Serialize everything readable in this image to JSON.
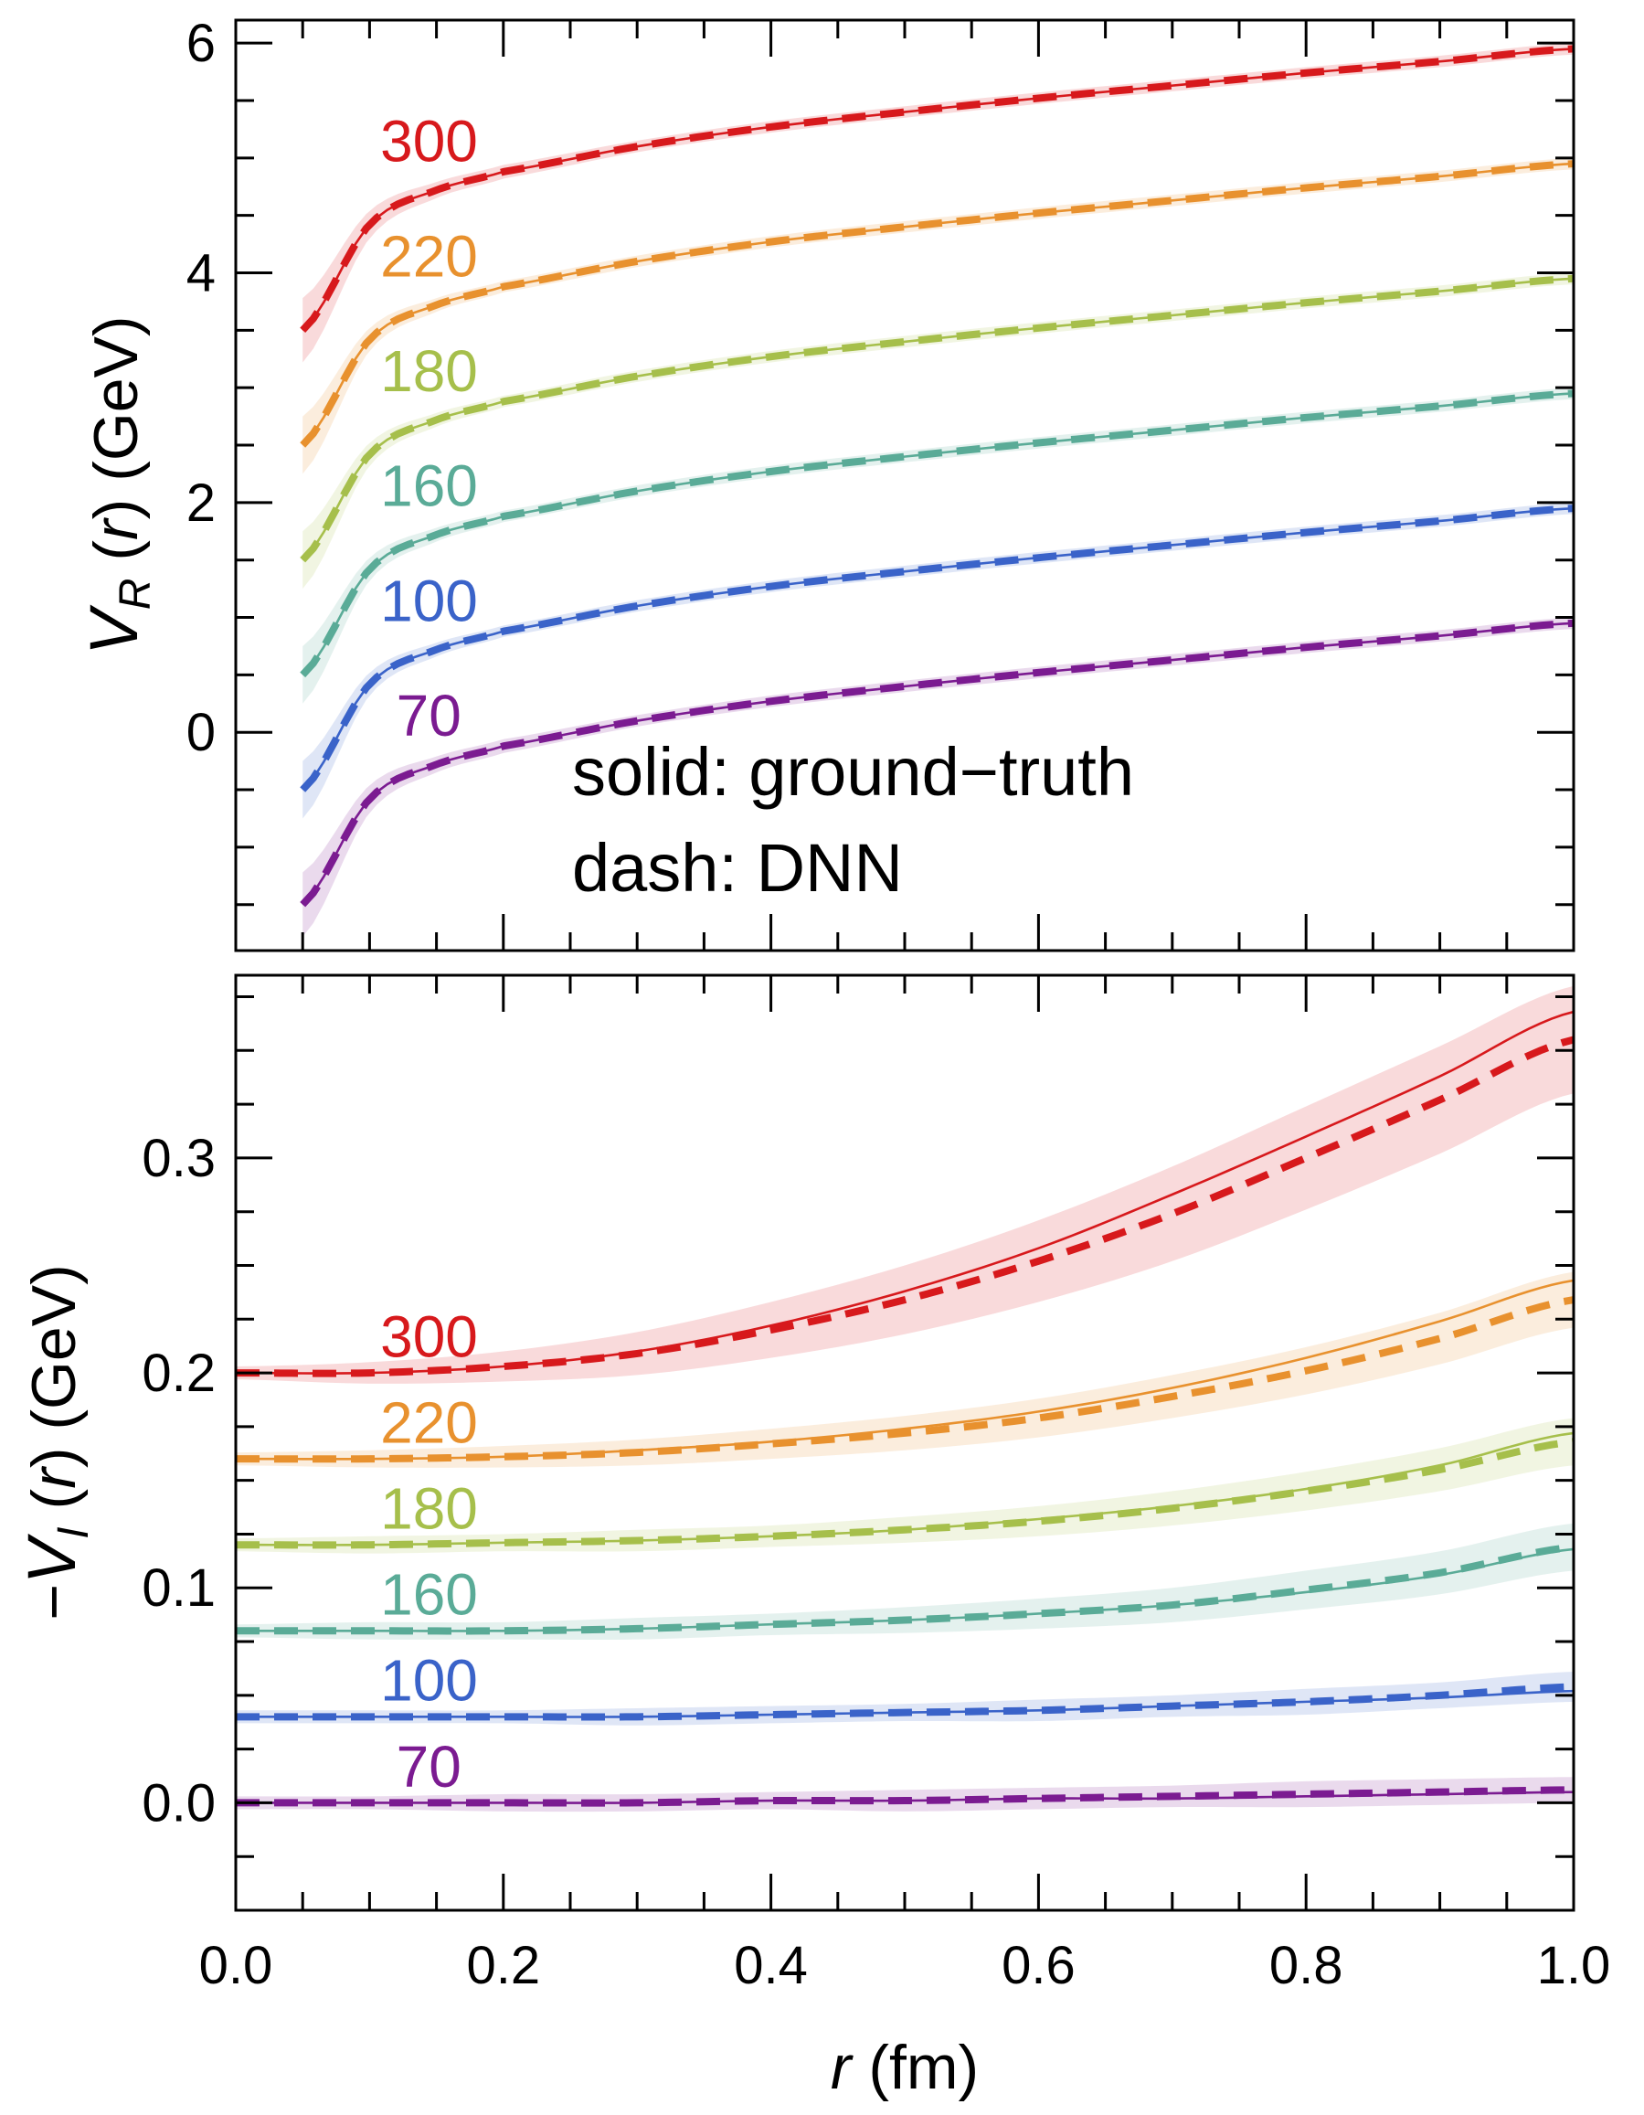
{
  "chart_data": [
    {
      "type": "line",
      "panel": "top",
      "ylabel": "V_R (r) (GeV)",
      "ylabel_parts": {
        "main": "V",
        "sub": "R",
        "arg": " (",
        "var": "r",
        "rest": ") (GeV)"
      },
      "xlim": [
        0.0,
        1.0
      ],
      "ylim": [
        -1.9,
        6.2
      ],
      "yticks": [
        0,
        2,
        4,
        6
      ],
      "ytick_labels": [
        "0",
        "2",
        "4",
        "6"
      ],
      "xticks": [
        0,
        0.2,
        0.4,
        0.6,
        0.8,
        1.0
      ],
      "annotations": [
        "solid: ground−truth",
        "dash: DNN"
      ],
      "styles": {
        "solid": "ground-truth",
        "dashed": "DNN",
        "band": "uncertainty"
      },
      "series": [
        {
          "label": "300",
          "color": "#d7191c",
          "x": [
            0.05,
            0.1,
            0.15,
            0.2,
            0.3,
            0.4,
            0.5,
            0.6,
            0.7,
            0.8,
            0.9,
            1.0
          ],
          "y": [
            3.5,
            4.42,
            4.72,
            4.88,
            5.1,
            5.27,
            5.4,
            5.52,
            5.63,
            5.74,
            5.84,
            5.95
          ],
          "band": [
            0.28,
            0.12,
            0.07,
            0.06,
            0.05,
            0.05,
            0.05,
            0.05,
            0.05,
            0.05,
            0.05,
            0.05
          ]
        },
        {
          "label": "220",
          "color": "#e8912e",
          "x": [
            0.05,
            0.1,
            0.15,
            0.2,
            0.3,
            0.4,
            0.5,
            0.6,
            0.7,
            0.8,
            0.9,
            1.0
          ],
          "y": [
            2.5,
            3.42,
            3.72,
            3.88,
            4.1,
            4.27,
            4.4,
            4.52,
            4.63,
            4.74,
            4.84,
            4.95
          ],
          "band": [
            0.25,
            0.1,
            0.06,
            0.05,
            0.05,
            0.05,
            0.05,
            0.05,
            0.05,
            0.05,
            0.05,
            0.05
          ]
        },
        {
          "label": "180",
          "color": "#a6bf4b",
          "x": [
            0.05,
            0.1,
            0.15,
            0.2,
            0.3,
            0.4,
            0.5,
            0.6,
            0.7,
            0.8,
            0.9,
            1.0
          ],
          "y": [
            1.5,
            2.42,
            2.72,
            2.88,
            3.1,
            3.27,
            3.4,
            3.52,
            3.63,
            3.74,
            3.84,
            3.95
          ],
          "band": [
            0.25,
            0.1,
            0.06,
            0.05,
            0.05,
            0.05,
            0.05,
            0.05,
            0.05,
            0.05,
            0.05,
            0.05
          ]
        },
        {
          "label": "160",
          "color": "#5aab97",
          "x": [
            0.05,
            0.1,
            0.15,
            0.2,
            0.3,
            0.4,
            0.5,
            0.6,
            0.7,
            0.8,
            0.9,
            1.0
          ],
          "y": [
            0.5,
            1.42,
            1.72,
            1.88,
            2.1,
            2.27,
            2.4,
            2.52,
            2.63,
            2.74,
            2.84,
            2.95
          ],
          "band": [
            0.25,
            0.1,
            0.06,
            0.05,
            0.05,
            0.05,
            0.05,
            0.05,
            0.05,
            0.05,
            0.05,
            0.05
          ]
        },
        {
          "label": "100",
          "color": "#3a63c9",
          "x": [
            0.05,
            0.1,
            0.15,
            0.2,
            0.3,
            0.4,
            0.5,
            0.6,
            0.7,
            0.8,
            0.9,
            1.0
          ],
          "y": [
            -0.5,
            0.42,
            0.72,
            0.88,
            1.1,
            1.27,
            1.4,
            1.52,
            1.63,
            1.74,
            1.84,
            1.95
          ],
          "band": [
            0.25,
            0.1,
            0.06,
            0.05,
            0.05,
            0.05,
            0.05,
            0.05,
            0.05,
            0.05,
            0.05,
            0.05
          ]
        },
        {
          "label": "70",
          "color": "#7b1b91",
          "x": [
            0.05,
            0.1,
            0.15,
            0.2,
            0.3,
            0.4,
            0.5,
            0.6,
            0.7,
            0.8,
            0.9,
            1.0
          ],
          "y": [
            -1.5,
            -0.58,
            -0.28,
            -0.12,
            0.1,
            0.27,
            0.4,
            0.52,
            0.63,
            0.74,
            0.84,
            0.95
          ],
          "band": [
            0.28,
            0.12,
            0.07,
            0.06,
            0.05,
            0.05,
            0.05,
            0.05,
            0.05,
            0.05,
            0.05,
            0.05
          ]
        }
      ]
    },
    {
      "type": "line",
      "panel": "bottom",
      "ylabel": "−V_I (r) (GeV)",
      "ylabel_parts": {
        "pre": "−",
        "main": "V",
        "sub": "I",
        "arg": " (",
        "var": "r",
        "rest": ") (GeV)"
      },
      "xlabel": "r (fm)",
      "xlabel_parts": {
        "var": "r",
        "rest": " (fm)"
      },
      "xlim": [
        0.0,
        1.0
      ],
      "ylim": [
        -0.05,
        0.385
      ],
      "yticks": [
        0.0,
        0.1,
        0.2,
        0.3
      ],
      "ytick_labels": [
        "0.0",
        "0.1",
        "0.2",
        "0.3"
      ],
      "xticks": [
        0,
        0.2,
        0.4,
        0.6,
        0.8,
        1.0
      ],
      "xtick_labels": [
        "0.0",
        "0.2",
        "0.4",
        "0.6",
        "0.8",
        "1.0"
      ],
      "series": [
        {
          "label": "300",
          "color": "#d7191c",
          "x": [
            0.0,
            0.1,
            0.2,
            0.3,
            0.4,
            0.5,
            0.6,
            0.7,
            0.8,
            0.9,
            1.0
          ],
          "y_truth": [
            0.2,
            0.2,
            0.203,
            0.21,
            0.222,
            0.238,
            0.258,
            0.283,
            0.31,
            0.338,
            0.368
          ],
          "y_dnn": [
            0.2,
            0.2,
            0.203,
            0.209,
            0.22,
            0.234,
            0.252,
            0.274,
            0.3,
            0.327,
            0.355
          ],
          "band": [
            0.003,
            0.005,
            0.007,
            0.01,
            0.013,
            0.016,
            0.019,
            0.022,
            0.024,
            0.025,
            0.025
          ]
        },
        {
          "label": "220",
          "color": "#e8912e",
          "x": [
            0.0,
            0.1,
            0.2,
            0.3,
            0.4,
            0.5,
            0.6,
            0.7,
            0.8,
            0.9,
            1.0
          ],
          "y_truth": [
            0.16,
            0.16,
            0.161,
            0.164,
            0.168,
            0.174,
            0.182,
            0.193,
            0.207,
            0.224,
            0.243
          ],
          "y_dnn": [
            0.16,
            0.16,
            0.161,
            0.163,
            0.167,
            0.172,
            0.179,
            0.189,
            0.201,
            0.216,
            0.234
          ],
          "band": [
            0.003,
            0.004,
            0.005,
            0.006,
            0.007,
            0.008,
            0.009,
            0.01,
            0.011,
            0.012,
            0.013
          ]
        },
        {
          "label": "180",
          "color": "#a6bf4b",
          "x": [
            0.0,
            0.1,
            0.2,
            0.3,
            0.4,
            0.5,
            0.6,
            0.7,
            0.8,
            0.9,
            1.0
          ],
          "y_truth": [
            0.12,
            0.12,
            0.121,
            0.122,
            0.124,
            0.127,
            0.132,
            0.138,
            0.146,
            0.157,
            0.172
          ],
          "y_dnn": [
            0.12,
            0.12,
            0.121,
            0.122,
            0.124,
            0.127,
            0.131,
            0.137,
            0.145,
            0.155,
            0.168
          ],
          "band": [
            0.003,
            0.004,
            0.004,
            0.005,
            0.005,
            0.006,
            0.007,
            0.008,
            0.009,
            0.01,
            0.011
          ]
        },
        {
          "label": "160",
          "color": "#5aab97",
          "x": [
            0.0,
            0.1,
            0.2,
            0.3,
            0.4,
            0.5,
            0.6,
            0.7,
            0.8,
            0.9,
            1.0
          ],
          "y_truth": [
            0.08,
            0.08,
            0.08,
            0.081,
            0.083,
            0.085,
            0.088,
            0.092,
            0.098,
            0.106,
            0.118
          ],
          "y_dnn": [
            0.08,
            0.08,
            0.08,
            0.081,
            0.083,
            0.085,
            0.088,
            0.092,
            0.099,
            0.107,
            0.119
          ],
          "band": [
            0.003,
            0.004,
            0.004,
            0.005,
            0.005,
            0.006,
            0.007,
            0.008,
            0.009,
            0.01,
            0.011
          ]
        },
        {
          "label": "100",
          "color": "#3a63c9",
          "x": [
            0.0,
            0.1,
            0.2,
            0.3,
            0.4,
            0.5,
            0.6,
            0.7,
            0.8,
            0.9,
            1.0
          ],
          "y_truth": [
            0.04,
            0.04,
            0.04,
            0.04,
            0.041,
            0.042,
            0.043,
            0.045,
            0.047,
            0.049,
            0.052
          ],
          "y_dnn": [
            0.04,
            0.04,
            0.04,
            0.04,
            0.041,
            0.042,
            0.043,
            0.045,
            0.047,
            0.05,
            0.054
          ],
          "band": [
            0.003,
            0.003,
            0.003,
            0.004,
            0.004,
            0.004,
            0.005,
            0.005,
            0.006,
            0.006,
            0.007
          ]
        },
        {
          "label": "70",
          "color": "#7b1b91",
          "x": [
            0.0,
            0.1,
            0.2,
            0.3,
            0.4,
            0.5,
            0.6,
            0.7,
            0.8,
            0.9,
            1.0
          ],
          "y_truth": [
            0.0,
            0.0,
            0.0,
            0.0,
            0.001,
            0.001,
            0.002,
            0.002,
            0.003,
            0.004,
            0.005
          ],
          "y_dnn": [
            0.0,
            0.0,
            0.0,
            0.0,
            0.001,
            0.001,
            0.002,
            0.003,
            0.004,
            0.005,
            0.006
          ],
          "band": [
            0.003,
            0.003,
            0.004,
            0.004,
            0.004,
            0.005,
            0.005,
            0.005,
            0.006,
            0.006,
            0.006
          ]
        }
      ]
    }
  ]
}
